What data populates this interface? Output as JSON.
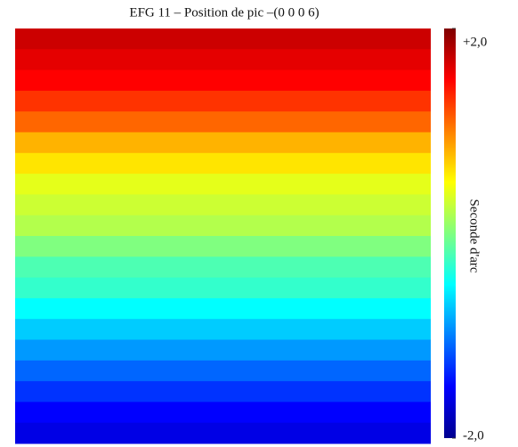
{
  "chart_data": {
    "type": "heatmap",
    "title": "EFG 11 – Position de pic –(0 0 0 6)",
    "row_values": [
      1.7,
      1.6,
      1.5,
      1.3,
      1.1,
      0.8,
      0.6,
      0.4,
      0.3,
      0.2,
      0.0,
      -0.2,
      -0.3,
      -0.5,
      -0.7,
      -0.9,
      -1.1,
      -1.3,
      -1.5,
      -1.6
    ],
    "colormap": "jet",
    "zlim": [
      -2,
      2
    ],
    "zticks": [
      {
        "value": 2,
        "label": "+2,0"
      },
      {
        "value": -2,
        "label": "-2,0"
      }
    ],
    "colorbar_label": "Seconde d'arc"
  }
}
